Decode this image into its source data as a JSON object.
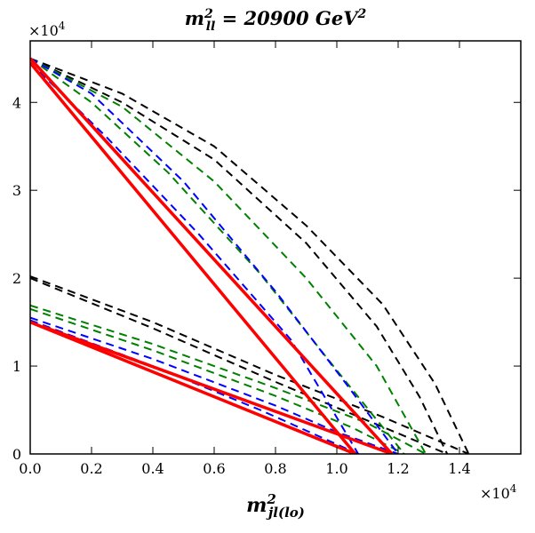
{
  "chart_data": {
    "type": "line",
    "title": {
      "main": "m",
      "sup": "2",
      "sub": "ll",
      "rest": " = 20900 GeV",
      "rest_sup": "2"
    },
    "xlabel": {
      "main": "m",
      "sup": "2",
      "sub": "jl(lo)"
    },
    "ylabel": "",
    "x_multiplier": {
      "base": "×10",
      "exp": "4"
    },
    "y_multiplier": {
      "base": "×10",
      "exp": "4"
    },
    "xlim": [
      0,
      16000
    ],
    "ylim": [
      0,
      47000
    ],
    "x_ticks": [
      {
        "value": 0,
        "label": "0.0"
      },
      {
        "value": 2000,
        "label": "0.2"
      },
      {
        "value": 4000,
        "label": "0.4"
      },
      {
        "value": 6000,
        "label": "0.6"
      },
      {
        "value": 8000,
        "label": "0.8"
      },
      {
        "value": 10000,
        "label": "1.0"
      },
      {
        "value": 12000,
        "label": "1.2"
      },
      {
        "value": 14000,
        "label": "1.4"
      }
    ],
    "y_ticks": [
      {
        "value": 0,
        "label": "0"
      },
      {
        "value": 10000,
        "label": "1"
      },
      {
        "value": 20000,
        "label": "2"
      },
      {
        "value": 30000,
        "label": "3"
      },
      {
        "value": 40000,
        "label": "4"
      }
    ],
    "grid": false,
    "legend": "none",
    "series": [
      {
        "name": "black-dashed-outer-upper",
        "color": "#000000",
        "style": "dashed",
        "width": 2,
        "points": [
          [
            0,
            45000
          ],
          [
            3000,
            41000
          ],
          [
            6000,
            35000
          ],
          [
            9000,
            26000
          ],
          [
            11500,
            17000
          ],
          [
            13200,
            8000
          ],
          [
            14300,
            0
          ]
        ]
      },
      {
        "name": "black-dashed-inner-upper",
        "color": "#000000",
        "style": "dashed",
        "width": 2,
        "points": [
          [
            0,
            45000
          ],
          [
            3000,
            40000
          ],
          [
            6000,
            33500
          ],
          [
            9000,
            24000
          ],
          [
            11300,
            14500
          ],
          [
            12700,
            6500
          ],
          [
            13600,
            0
          ]
        ]
      },
      {
        "name": "black-dashed-outer-lower",
        "color": "#000000",
        "style": "dashed",
        "width": 2,
        "points": [
          [
            0,
            20200
          ],
          [
            4000,
            15000
          ],
          [
            8000,
            9000
          ],
          [
            11500,
            4200
          ],
          [
            14300,
            0
          ]
        ]
      },
      {
        "name": "black-dashed-inner-lower",
        "color": "#000000",
        "style": "dashed",
        "width": 2,
        "points": [
          [
            0,
            20000
          ],
          [
            4000,
            14300
          ],
          [
            8000,
            8200
          ],
          [
            11000,
            3800
          ],
          [
            13600,
            0
          ]
        ]
      },
      {
        "name": "green-dashed-outer-upper",
        "color": "#008000",
        "style": "dashed",
        "width": 2,
        "points": [
          [
            0,
            45000
          ],
          [
            3000,
            39500
          ],
          [
            6000,
            31000
          ],
          [
            9000,
            20000
          ],
          [
            11300,
            10000
          ],
          [
            12900,
            0
          ]
        ]
      },
      {
        "name": "green-dashed-inner-upper",
        "color": "#008000",
        "style": "dashed",
        "width": 2,
        "points": [
          [
            0,
            45000
          ],
          [
            2000,
            40000
          ],
          [
            4500,
            32000
          ],
          [
            7500,
            20500
          ],
          [
            10000,
            9500
          ],
          [
            12200,
            0
          ]
        ]
      },
      {
        "name": "green-dashed-outer-lower",
        "color": "#008000",
        "style": "dashed",
        "width": 2,
        "points": [
          [
            0,
            16900
          ],
          [
            4000,
            12500
          ],
          [
            8000,
            7500
          ],
          [
            11000,
            3500
          ],
          [
            12900,
            0
          ]
        ]
      },
      {
        "name": "green-dashed-inner-lower",
        "color": "#008000",
        "style": "dashed",
        "width": 2,
        "points": [
          [
            0,
            16500
          ],
          [
            4000,
            11800
          ],
          [
            8000,
            6600
          ],
          [
            10500,
            3000
          ],
          [
            12200,
            0
          ]
        ]
      },
      {
        "name": "blue-dashed-upper-a",
        "color": "#0000ff",
        "style": "dashed",
        "width": 2,
        "points": [
          [
            0,
            45000
          ],
          [
            2000,
            41000
          ],
          [
            5000,
            31000
          ],
          [
            8000,
            18500
          ],
          [
            10300,
            8000
          ],
          [
            12000,
            0
          ]
        ]
      },
      {
        "name": "blue-dashed-upper-b",
        "color": "#0000ff",
        "style": "dashed",
        "width": 2,
        "points": [
          [
            0,
            44500
          ],
          [
            2500,
            36000
          ],
          [
            5500,
            25000
          ],
          [
            8500,
            13000
          ],
          [
            10700,
            0
          ]
        ]
      },
      {
        "name": "blue-dashed-lower-a",
        "color": "#0000ff",
        "style": "dashed",
        "width": 2,
        "points": [
          [
            0,
            15500
          ],
          [
            4000,
            10800
          ],
          [
            8000,
            5500
          ],
          [
            10000,
            2500
          ],
          [
            12000,
            0
          ]
        ]
      },
      {
        "name": "blue-dashed-lower-b",
        "color": "#0000ff",
        "style": "dashed",
        "width": 2,
        "points": [
          [
            0,
            15200
          ],
          [
            4000,
            10000
          ],
          [
            7500,
            5000
          ],
          [
            10700,
            0
          ]
        ]
      },
      {
        "name": "orange-solid-upper",
        "color": "#e0901e",
        "style": "solid",
        "width": 3,
        "points": [
          [
            0,
            45000
          ],
          [
            11800,
            0
          ]
        ]
      },
      {
        "name": "orange-solid-mid",
        "color": "#e0901e",
        "style": "solid",
        "width": 3,
        "points": [
          [
            0,
            44500
          ],
          [
            10600,
            0
          ]
        ]
      },
      {
        "name": "orange-solid-lower",
        "color": "#e0901e",
        "style": "solid",
        "width": 3,
        "points": [
          [
            0,
            15000
          ],
          [
            10600,
            0
          ]
        ]
      },
      {
        "name": "orange-solid-lower-b",
        "color": "#e0901e",
        "style": "solid",
        "width": 3,
        "points": [
          [
            0,
            15000
          ],
          [
            11800,
            0
          ]
        ]
      },
      {
        "name": "red-solid-upper",
        "color": "#ff0000",
        "style": "solid",
        "width": 3.5,
        "points": [
          [
            0,
            45000
          ],
          [
            11800,
            0
          ]
        ]
      },
      {
        "name": "red-solid-upper-inner",
        "color": "#ff0000",
        "style": "solid",
        "width": 3.5,
        "points": [
          [
            0,
            44500
          ],
          [
            10600,
            0
          ]
        ]
      },
      {
        "name": "red-solid-lower",
        "color": "#ff0000",
        "style": "solid",
        "width": 3.5,
        "points": [
          [
            400,
            14500
          ],
          [
            11800,
            0
          ]
        ]
      },
      {
        "name": "red-solid-lower-inner",
        "color": "#ff0000",
        "style": "solid",
        "width": 3.5,
        "points": [
          [
            0,
            15000
          ],
          [
            10600,
            0
          ]
        ]
      }
    ]
  }
}
